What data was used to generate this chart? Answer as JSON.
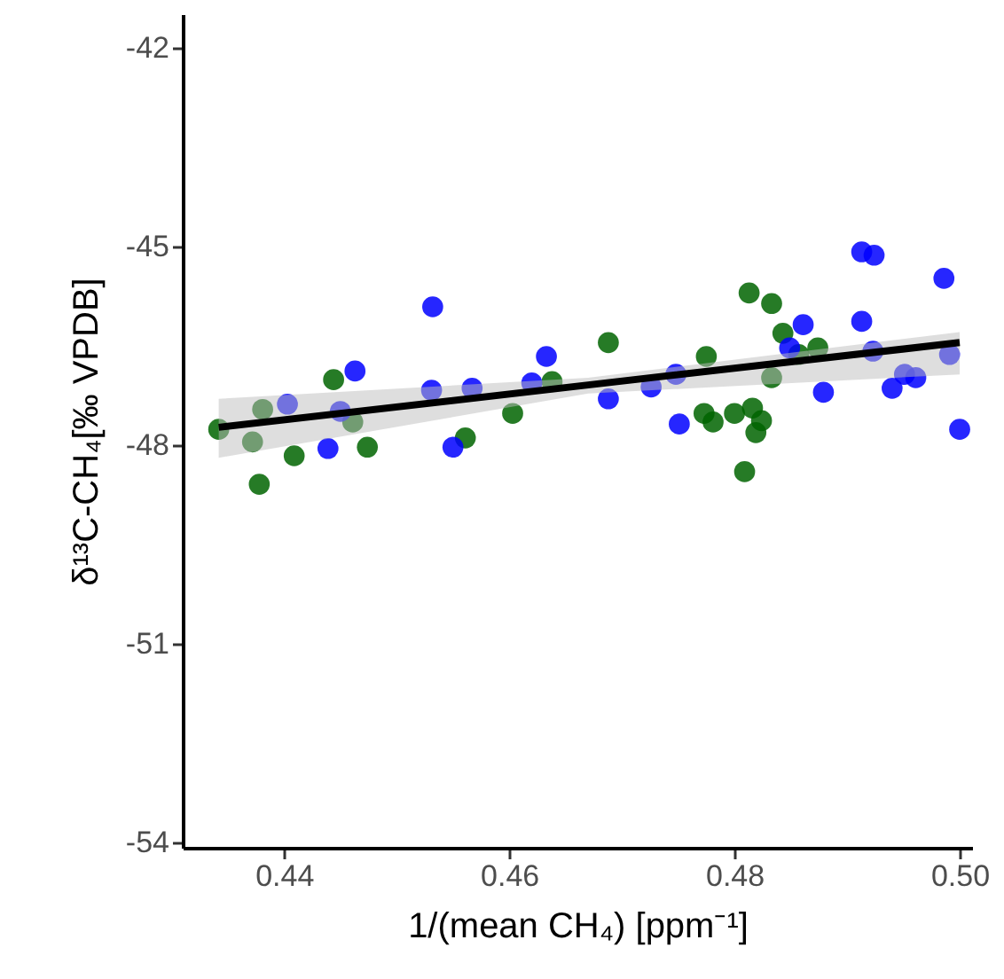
{
  "chart_data": {
    "type": "scatter",
    "xlabel": "1/(mean CH₄) [ppm⁻¹]",
    "ylabel": "δ¹³C-CH₄[‰ VPDB]",
    "xlim": [
      0.431,
      0.5011
    ],
    "ylim": [
      -54.08,
      -41.49
    ],
    "xticks": [
      {
        "value": 0.44,
        "label": "0.44"
      },
      {
        "value": 0.46,
        "label": "0.46"
      },
      {
        "value": 0.48,
        "label": "0.48"
      },
      {
        "value": 0.5,
        "label": "0.50"
      }
    ],
    "yticks": [
      -54,
      -51,
      -48,
      -45,
      -42
    ],
    "grid": false,
    "legend": false,
    "series": [
      {
        "marker": "circle",
        "color": "#006400",
        "x": [
          0.4342,
          0.4381,
          0.4372,
          0.4378,
          0.4409,
          0.4444,
          0.4461,
          0.4474,
          0.4561,
          0.4603,
          0.4638,
          0.4688,
          0.4775,
          0.4773,
          0.4781,
          0.48,
          0.4816,
          0.4824,
          0.4819,
          0.4809,
          0.4813,
          0.4833,
          0.4843,
          0.4857,
          0.4874,
          0.4833
        ],
        "values": [
          -47.76,
          -47.46,
          -47.95,
          -48.59,
          -48.16,
          -47.01,
          -47.65,
          -48.03,
          -47.89,
          -47.52,
          -47.04,
          -46.45,
          -46.66,
          -47.52,
          -47.65,
          -47.52,
          -47.44,
          -47.63,
          -47.81,
          -48.4,
          -45.7,
          -45.86,
          -46.31,
          -46.63,
          -46.53,
          -46.98
        ]
      },
      {
        "marker": "circle",
        "color": "#0000ff",
        "x": [
          0.4403,
          0.445,
          0.4463,
          0.4439,
          0.4532,
          0.4531,
          0.4567,
          0.455,
          0.462,
          0.4633,
          0.4688,
          0.4726,
          0.4748,
          0.4751,
          0.4861,
          0.4849,
          0.4879,
          0.4913,
          0.4924,
          0.4913,
          0.4923,
          0.494,
          0.4951,
          0.4961,
          0.4986,
          0.4991,
          0.5
        ],
        "values": [
          -47.38,
          -47.49,
          -46.88,
          -48.05,
          -45.91,
          -47.17,
          -47.14,
          -48.03,
          -47.06,
          -46.66,
          -47.3,
          -47.12,
          -46.93,
          -47.68,
          -46.18,
          -46.53,
          -47.2,
          -45.08,
          -45.13,
          -46.13,
          -46.58,
          -47.14,
          -46.93,
          -46.98,
          -45.48,
          -46.63,
          -47.76
        ]
      },
      {
        "type": "line",
        "marker": "none",
        "color": "#000000",
        "x": [
          0.4342,
          0.467,
          0.5
        ],
        "values": [
          -47.73,
          -47.09,
          -46.45
        ],
        "lower": [
          -48.19,
          -47.22,
          -46.93
        ],
        "upper": [
          -47.3,
          -46.98,
          -46.29
        ]
      }
    ]
  }
}
